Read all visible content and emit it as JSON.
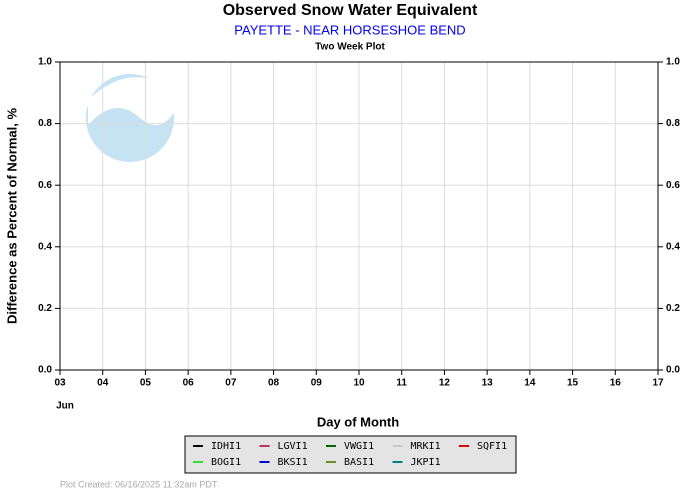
{
  "chart_data": {
    "type": "line",
    "title": "Observed Snow Water Equivalent",
    "subtitle": "PAYETTE - NEAR HORSESHOE BEND",
    "plot_label": "Two Week Plot",
    "y_label": "Difference as Percent of Normal, %",
    "x_label": "Day of Month",
    "x_month": "Jun",
    "footer": "Plot Created: 06/16/2025 11:32am PDT",
    "xlim": [
      3,
      17
    ],
    "xticks": [
      {
        "value": 3,
        "label": "03"
      },
      {
        "value": 4,
        "label": "04"
      },
      {
        "value": 5,
        "label": "05"
      },
      {
        "value": 6,
        "label": "06"
      },
      {
        "value": 7,
        "label": "07"
      },
      {
        "value": 8,
        "label": "08"
      },
      {
        "value": 9,
        "label": "09"
      },
      10,
      11,
      12,
      13,
      14,
      15,
      16,
      17
    ],
    "ylim": [
      0,
      1
    ],
    "yticks": [
      {
        "value": 0,
        "label": "0.0"
      },
      0.2,
      0.4,
      0.6,
      0.8,
      {
        "value": 1,
        "label": "1.0"
      }
    ],
    "y2lim": [
      0,
      1
    ],
    "y2ticks": [
      {
        "value": 0,
        "label": "0.0"
      },
      0.2,
      0.4,
      0.6,
      0.8,
      {
        "value": 1,
        "label": "1.0"
      }
    ],
    "grid": true,
    "x": [],
    "series": [
      {
        "name": "IDHI1",
        "color": "#000000",
        "values": []
      },
      {
        "name": "LGVI1",
        "color": "#c03060",
        "values": []
      },
      {
        "name": "VWGI1",
        "color": "#006400",
        "values": []
      },
      {
        "name": "MRKI1",
        "color": "#c8c8c8",
        "values": []
      },
      {
        "name": "SQFI1",
        "color": "#e00000",
        "values": []
      },
      {
        "name": "BOGI1",
        "color": "#33dd33",
        "values": []
      },
      {
        "name": "BKSI1",
        "color": "#0000cc",
        "values": []
      },
      {
        "name": "BASI1",
        "color": "#6b8e23",
        "values": []
      },
      {
        "name": "JKPI1",
        "color": "#008080",
        "values": []
      }
    ]
  }
}
